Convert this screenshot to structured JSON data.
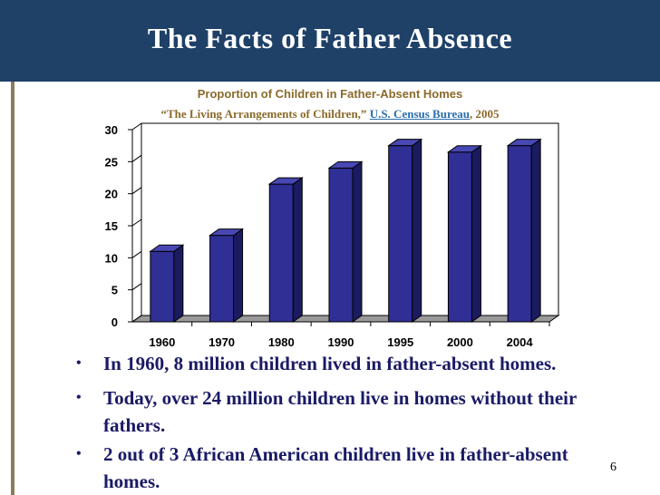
{
  "slide": {
    "title": "The Facts of Father Absence",
    "page_number": "6"
  },
  "colors": {
    "header": "#1f4168",
    "bar_front": "#2f2f96",
    "bar_side": "#1b1b60",
    "bar_top": "#4848b4",
    "floor": "#9a9a9a",
    "bullet_text": "#1a1a66"
  },
  "bullets": [
    "In 1960, 8 million children lived in father-absent homes.",
    "Today, over 24 million children live in homes without their fathers.",
    "2 out of 3 African American children live in father-absent homes."
  ],
  "chart_data": {
    "type": "bar",
    "title": "Proportion of Children in Father-Absent Homes",
    "subtitle_prefix": "“The Living Arrangements of Children,” ",
    "subtitle_link": "U.S. Census Bureau",
    "subtitle_suffix": ", 2005",
    "categories": [
      "1960",
      "1970",
      "1980",
      "1990",
      "1995",
      "2000",
      "2004"
    ],
    "values": [
      11,
      13.5,
      21.5,
      24,
      27.5,
      26.5,
      27.5
    ],
    "ylim": [
      0,
      30
    ],
    "yticks": [
      0,
      5,
      10,
      15,
      20,
      25,
      30
    ],
    "xlabel": "",
    "ylabel": "",
    "grid": false,
    "style": "3d"
  }
}
